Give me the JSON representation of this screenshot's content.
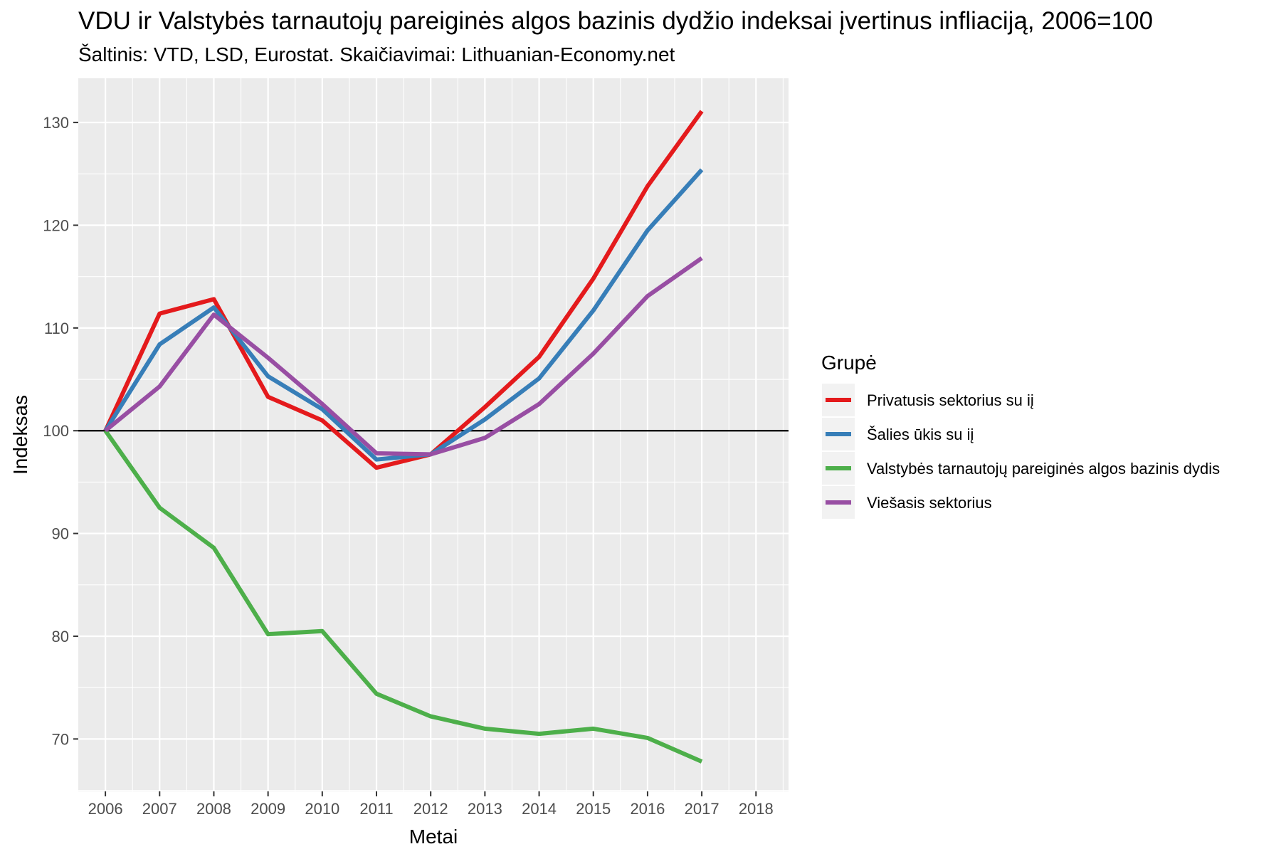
{
  "chart_data": {
    "type": "line",
    "title": "VDU ir Valstybės tarnautojų pareiginės algos bazinis dydžio indeksai įvertinus infliaciją, 2006=100",
    "subtitle": "Šaltinis: VTD, LSD, Eurostat. Skaičiavimai: Lithuanian-Economy.net",
    "xlabel": "Metai",
    "ylabel": "Indeksas",
    "x_ticks": [
      2006,
      2007,
      2008,
      2009,
      2010,
      2011,
      2012,
      2013,
      2014,
      2015,
      2016,
      2017,
      2018
    ],
    "y_ticks": [
      70,
      80,
      90,
      100,
      110,
      120,
      130
    ],
    "xlim": [
      2005.5,
      2018.6
    ],
    "ylim": [
      64.9,
      134.3
    ],
    "reference_line": 100,
    "grid": true,
    "legend_title": "Grupė",
    "legend_position": "right",
    "series": [
      {
        "name": "Privatusis sektorius su iį",
        "color": "#e41a1c",
        "x": [
          2006,
          2007,
          2008,
          2009,
          2010,
          2011,
          2012,
          2013,
          2014,
          2015,
          2016,
          2017
        ],
        "values": [
          100,
          111.4,
          112.8,
          103.3,
          101.0,
          96.4,
          97.7,
          102.3,
          107.2,
          114.8,
          123.8,
          131.1
        ]
      },
      {
        "name": "Šalies ūkis su iį",
        "color": "#377eb8",
        "x": [
          2006,
          2007,
          2008,
          2009,
          2010,
          2011,
          2012,
          2013,
          2014,
          2015,
          2016,
          2017
        ],
        "values": [
          100,
          108.4,
          112.0,
          105.3,
          102.1,
          97.2,
          97.7,
          101.1,
          105.1,
          111.7,
          119.5,
          125.4
        ]
      },
      {
        "name": "Valstybės tarnautojų pareiginės algos bazinis dydis",
        "color": "#4daf4a",
        "x": [
          2006,
          2007,
          2008,
          2009,
          2010,
          2011,
          2012,
          2013,
          2014,
          2015,
          2016,
          2017
        ],
        "values": [
          100,
          92.5,
          88.6,
          80.2,
          80.5,
          74.4,
          72.2,
          71.0,
          70.5,
          71.0,
          70.1,
          67.8
        ]
      },
      {
        "name": "Viešasis sektorius",
        "color": "#984ea3",
        "x": [
          2006,
          2007,
          2008,
          2009,
          2010,
          2011,
          2012,
          2013,
          2014,
          2015,
          2016,
          2017
        ],
        "values": [
          100,
          104.3,
          111.3,
          107.1,
          102.6,
          97.8,
          97.7,
          99.3,
          102.6,
          107.5,
          113.1,
          116.8
        ]
      }
    ]
  }
}
